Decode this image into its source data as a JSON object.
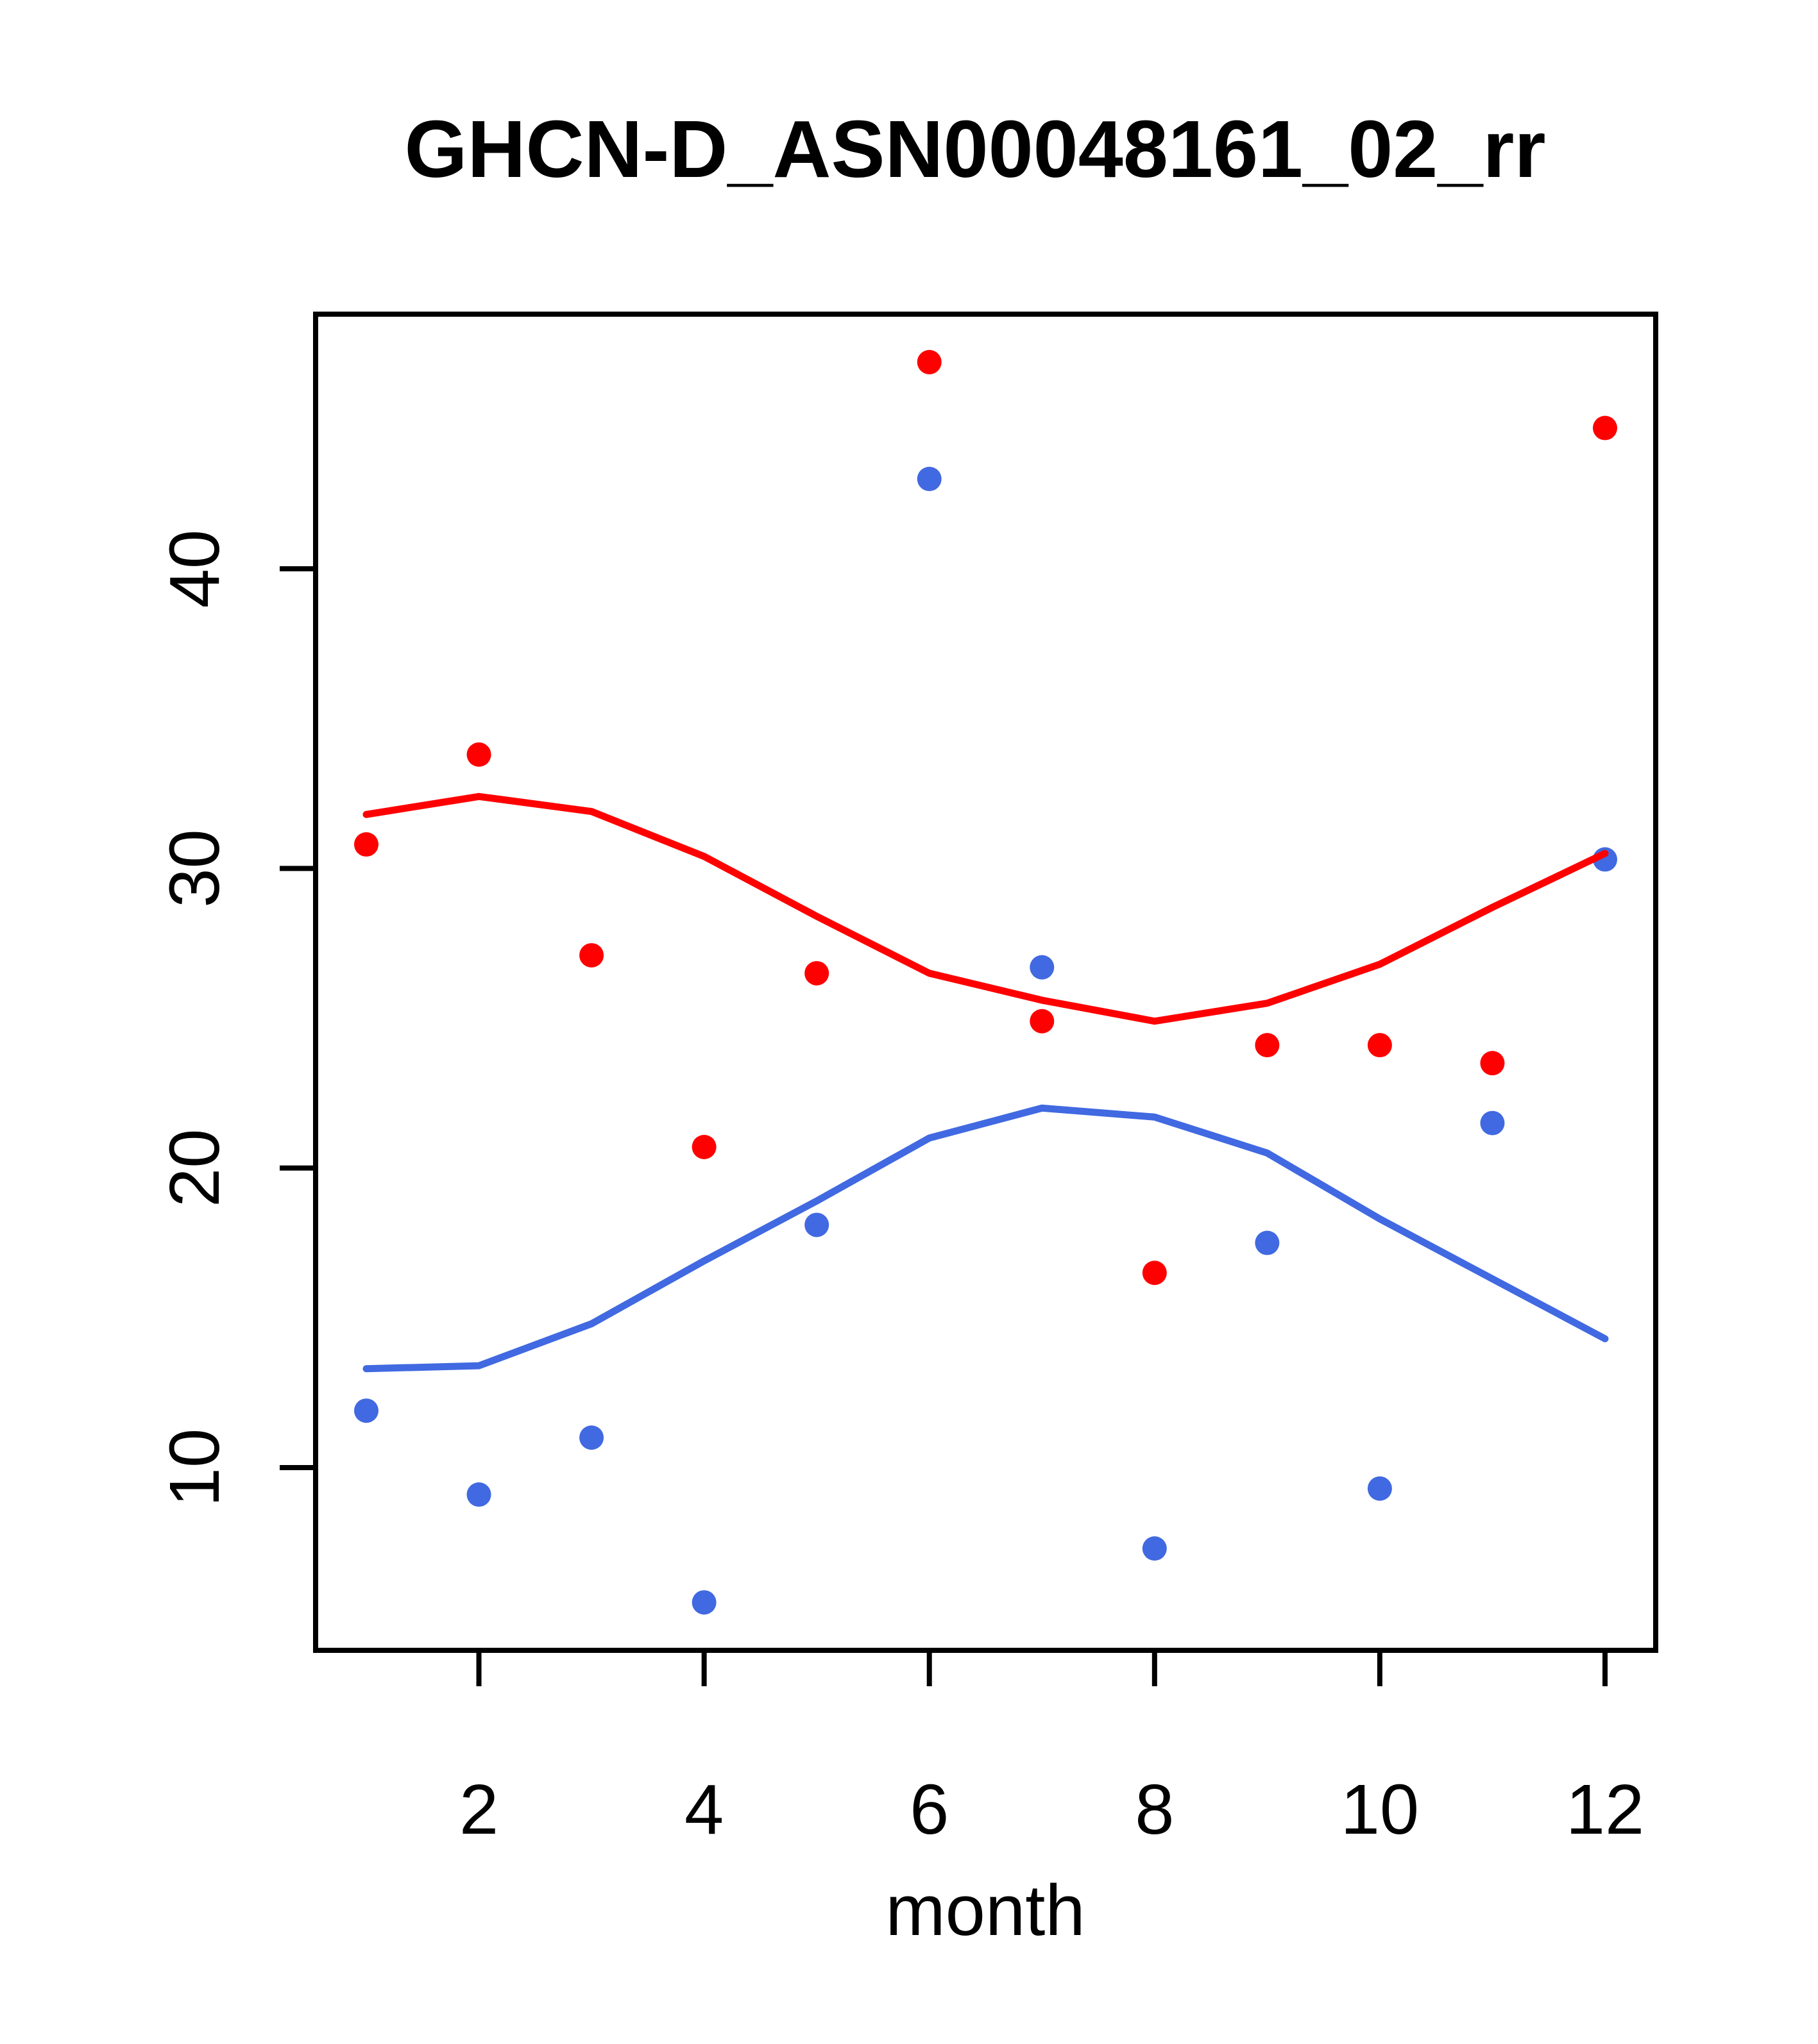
{
  "title": "GHCN-D_ASN00048161_02_rr",
  "x_axis": {
    "label": "month",
    "ticks": [
      2,
      4,
      6,
      8,
      10,
      12
    ]
  },
  "y_axis": {
    "label": "",
    "ticks": [
      10,
      20,
      30,
      40
    ]
  },
  "colors": {
    "red_series": "#ff0000",
    "blue_series": "#4169e1",
    "axis": "#000000",
    "background": "#ffffff"
  },
  "chart_data": {
    "type": "scatter",
    "title": "GHCN-D_ASN00048161_02_rr",
    "xlabel": "month",
    "ylabel": "",
    "x": [
      1,
      2,
      3,
      4,
      5,
      6,
      7,
      8,
      9,
      10,
      11,
      12
    ],
    "xlim": [
      0.55,
      12.45
    ],
    "ylim": [
      3.9,
      48.5
    ],
    "grid": false,
    "legend": "none",
    "series": [
      {
        "name": "red-points",
        "type": "scatter",
        "color": "#ff0000",
        "values": [
          30.8,
          33.8,
          27.1,
          20.7,
          26.5,
          46.9,
          24.9,
          16.5,
          24.1,
          24.1,
          23.5,
          44.7
        ]
      },
      {
        "name": "blue-points",
        "type": "scatter",
        "color": "#4169e1",
        "values": [
          11.9,
          9.1,
          11.0,
          5.5,
          18.1,
          43.0,
          26.7,
          7.3,
          17.5,
          9.3,
          21.5,
          30.3
        ]
      },
      {
        "name": "red-smooth-line",
        "type": "line",
        "color": "#ff0000",
        "values": [
          31.8,
          32.4,
          31.9,
          30.4,
          28.4,
          26.5,
          25.6,
          24.9,
          25.5,
          26.8,
          28.7,
          30.5
        ]
      },
      {
        "name": "blue-smooth-line",
        "type": "line",
        "color": "#4169e1",
        "values": [
          13.3,
          13.4,
          14.8,
          16.9,
          18.9,
          21.0,
          22.0,
          21.7,
          20.5,
          18.3,
          16.3,
          14.3
        ]
      }
    ]
  }
}
